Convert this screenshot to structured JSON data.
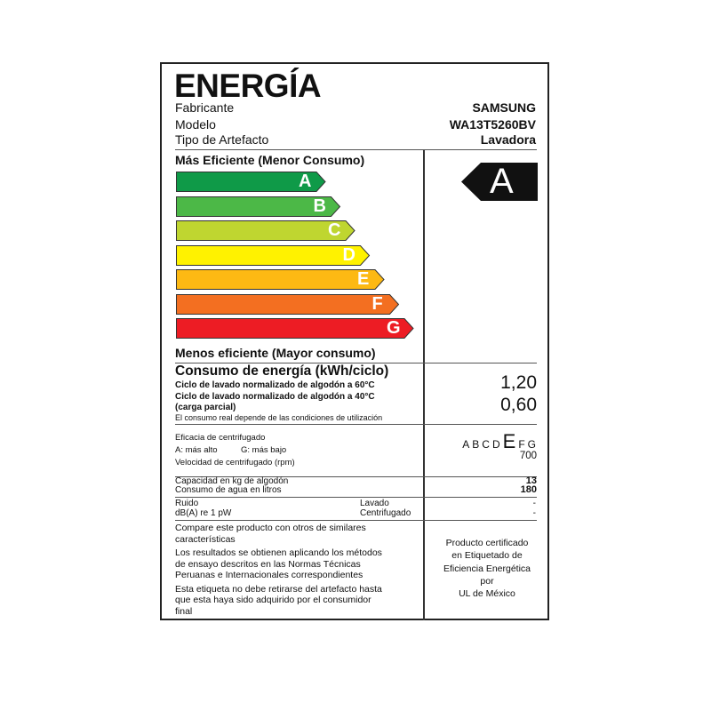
{
  "title": "ENERGÍA",
  "info": [
    {
      "label": "Fabricante",
      "value": "SAMSUNG"
    },
    {
      "label": "Modelo",
      "value": "WA13T5260BV"
    },
    {
      "label": "Tipo de Artefacto",
      "value": "Lavadora"
    }
  ],
  "scale": {
    "top_label": "Más Eficiente (Menor Consumo)",
    "bottom_label": "Menos eficiente (Mayor consumo)",
    "classes": [
      {
        "letter": "A",
        "color": "#0f9a48"
      },
      {
        "letter": "B",
        "color": "#4cb847"
      },
      {
        "letter": "C",
        "color": "#bfd630"
      },
      {
        "letter": "D",
        "color": "#fff200"
      },
      {
        "letter": "E",
        "color": "#fdb913"
      },
      {
        "letter": "F",
        "color": "#f36f21"
      },
      {
        "letter": "G",
        "color": "#ed1c24"
      }
    ],
    "rating": "A"
  },
  "consumption": {
    "heading": "Consumo de energía (kWh/ciclo)",
    "line60": "Ciclo de lavado normalizado de algodón a 60°C",
    "value60": "1,20",
    "line40": "Ciclo de lavado normalizado de algodón a 40°C",
    "line40b": "(carga parcial)",
    "value40": "0,60",
    "note": "El consumo real depende de las condiciones de utilización"
  },
  "spin": {
    "label": "Eficacia de centrifugado",
    "high": "A: más alto",
    "low": "G: más bajo",
    "speed_label": "Velocidad de centrifugado (rpm)",
    "classes": [
      "A",
      "B",
      "C",
      "D",
      "E",
      "F",
      "G"
    ],
    "selected": "E",
    "speed": "700"
  },
  "capacity": {
    "label": "Capacidad en kg de algodón",
    "value": "13"
  },
  "water": {
    "label": "Consumo de agua en litros",
    "value": "180"
  },
  "noise": {
    "label": "Ruido",
    "unit": "dB(A) re 1 pW",
    "wash_label": "Lavado",
    "spin_label": "Centrifugado",
    "wash_value": "-",
    "spin_value": "-"
  },
  "footer": {
    "compare": "Compare este producto con otros de similares",
    "compare2": "características",
    "results1": "Los resultados se obtienen aplicando los métodos",
    "results2": "de ensayo descritos en las Normas Técnicas",
    "results3": "Peruanas e Internacionales correspondientes",
    "remove1": "Esta etiqueta no debe retirarse del artefacto hasta",
    "remove2": "que esta haya sido adquirido por el consumidor",
    "remove3": "final",
    "cert": [
      "Producto certificado",
      "en Etiquetado de",
      "Eficiencia Energética",
      "por",
      "UL de México"
    ]
  }
}
